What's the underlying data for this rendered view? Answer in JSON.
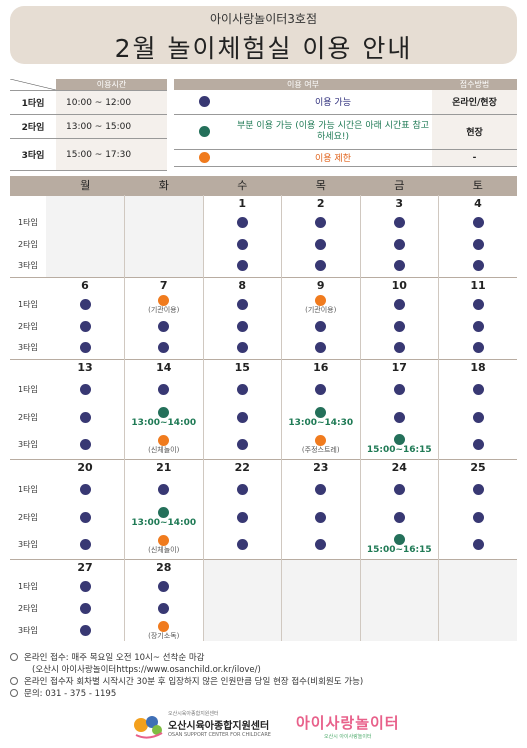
{
  "header": {
    "subtitle": "아이사랑놀이터3호점",
    "title": "2월 놀이체험실 이용 안내"
  },
  "time_table": {
    "header": "이용시간",
    "rows": [
      {
        "slot": "1타임",
        "time": "10:00 ~ 12:00"
      },
      {
        "slot": "2타임",
        "time": "13:00 ~ 15:00"
      },
      {
        "slot": "3타임",
        "time": "15:00 ~ 17:30"
      }
    ]
  },
  "usage_table": {
    "header_status": "이용 여부",
    "header_method": "접수방법",
    "rows": [
      {
        "color": "blue",
        "desc": "이용 가능",
        "method": "온라인/현장"
      },
      {
        "color": "green",
        "desc": "부분 이용 가능 (이용 가능 시간은 아래 시간표 참고하세요!)",
        "method": "현장"
      },
      {
        "color": "orange",
        "desc": "이용 제한",
        "method": "-"
      }
    ]
  },
  "calendar": {
    "days": [
      "월",
      "화",
      "수",
      "목",
      "금",
      "토"
    ],
    "slot_labels": [
      "1타임",
      "2타임",
      "3타임"
    ],
    "weeks": [
      {
        "dates": [
          "",
          "",
          "1",
          "2",
          "3",
          "4"
        ],
        "slots": [
          [
            null,
            null,
            {
              "c": "blue"
            },
            {
              "c": "blue"
            },
            {
              "c": "blue"
            },
            {
              "c": "blue"
            }
          ],
          [
            null,
            null,
            {
              "c": "blue"
            },
            {
              "c": "blue"
            },
            {
              "c": "blue"
            },
            {
              "c": "blue"
            }
          ],
          [
            null,
            null,
            {
              "c": "blue"
            },
            {
              "c": "blue"
            },
            {
              "c": "blue"
            },
            {
              "c": "blue"
            }
          ]
        ]
      },
      {
        "dates": [
          "6",
          "7",
          "8",
          "9",
          "10",
          "11"
        ],
        "slots": [
          [
            {
              "c": "blue"
            },
            {
              "c": "orange",
              "note": "(기관이용)"
            },
            {
              "c": "blue"
            },
            {
              "c": "orange",
              "note": "(기관이용)"
            },
            {
              "c": "blue"
            },
            {
              "c": "blue"
            }
          ],
          [
            {
              "c": "blue"
            },
            {
              "c": "blue"
            },
            {
              "c": "blue"
            },
            {
              "c": "blue"
            },
            {
              "c": "blue"
            },
            {
              "c": "blue"
            }
          ],
          [
            {
              "c": "blue"
            },
            {
              "c": "blue"
            },
            {
              "c": "blue"
            },
            {
              "c": "blue"
            },
            {
              "c": "blue"
            },
            {
              "c": "blue"
            }
          ]
        ]
      },
      {
        "dates": [
          "13",
          "14",
          "15",
          "16",
          "17",
          "18"
        ],
        "tall": true,
        "slots": [
          [
            {
              "c": "blue"
            },
            {
              "c": "blue"
            },
            {
              "c": "blue"
            },
            {
              "c": "blue"
            },
            {
              "c": "blue"
            },
            {
              "c": "blue"
            }
          ],
          [
            {
              "c": "blue"
            },
            {
              "c": "green",
              "time": "13:00~14:00"
            },
            {
              "c": "blue"
            },
            {
              "c": "green",
              "time": "13:00~14:30"
            },
            {
              "c": "blue"
            },
            {
              "c": "blue"
            }
          ],
          [
            {
              "c": "blue"
            },
            {
              "c": "orange",
              "note": "(신체놀이)"
            },
            {
              "c": "blue"
            },
            {
              "c": "orange",
              "note": "(주정스트레)"
            },
            {
              "c": "green",
              "time": "15:00~16:15"
            },
            {
              "c": "blue"
            }
          ]
        ]
      },
      {
        "dates": [
          "20",
          "21",
          "22",
          "23",
          "24",
          "25"
        ],
        "tall": true,
        "slots": [
          [
            {
              "c": "blue"
            },
            {
              "c": "blue"
            },
            {
              "c": "blue"
            },
            {
              "c": "blue"
            },
            {
              "c": "blue"
            },
            {
              "c": "blue"
            }
          ],
          [
            {
              "c": "blue"
            },
            {
              "c": "green",
              "time": "13:00~14:00"
            },
            {
              "c": "blue"
            },
            {
              "c": "blue"
            },
            {
              "c": "blue"
            },
            {
              "c": "blue"
            }
          ],
          [
            {
              "c": "blue"
            },
            {
              "c": "orange",
              "note": "(신체놀이)"
            },
            {
              "c": "blue"
            },
            {
              "c": "blue"
            },
            {
              "c": "green",
              "time": "15:00~16:15"
            },
            {
              "c": "blue"
            }
          ]
        ]
      },
      {
        "dates": [
          "27",
          "28",
          "",
          "",
          "",
          ""
        ],
        "slots": [
          [
            {
              "c": "blue"
            },
            {
              "c": "blue"
            },
            null,
            null,
            null,
            null
          ],
          [
            {
              "c": "blue"
            },
            {
              "c": "blue"
            },
            null,
            null,
            null,
            null
          ],
          [
            {
              "c": "blue"
            },
            {
              "c": "orange",
              "note": "(장기소독)"
            },
            null,
            null,
            null,
            null
          ]
        ]
      }
    ]
  },
  "notes": [
    "온라인 접수: 매주 목요일 오전 10시~ 선착순 마감",
    "(오산시 아이사랑놀이터https://www.osanchild.or.kr/ilove/)",
    "온라인 접수자 회차별 시작시간 30분 후 입장하지 않은 인원만큼 당일 현장 접수(비회원도 가능)",
    "문의: 031 - 375 - 1195"
  ],
  "footer": {
    "org_small": "오산시육아종합지원센터",
    "org_name": "오산시육아종합지원센터",
    "org_en": "OSAN SUPPORT CENTER FOR CHILDCARE",
    "brand": "아이사랑놀이터",
    "brand_sub": "오산시 아이사랑놀이터"
  },
  "colors": {
    "banner": "#e6ddd3",
    "header": "#b8aca1",
    "blue": "#383873",
    "green": "#24705a",
    "orange": "#f07b1e"
  }
}
